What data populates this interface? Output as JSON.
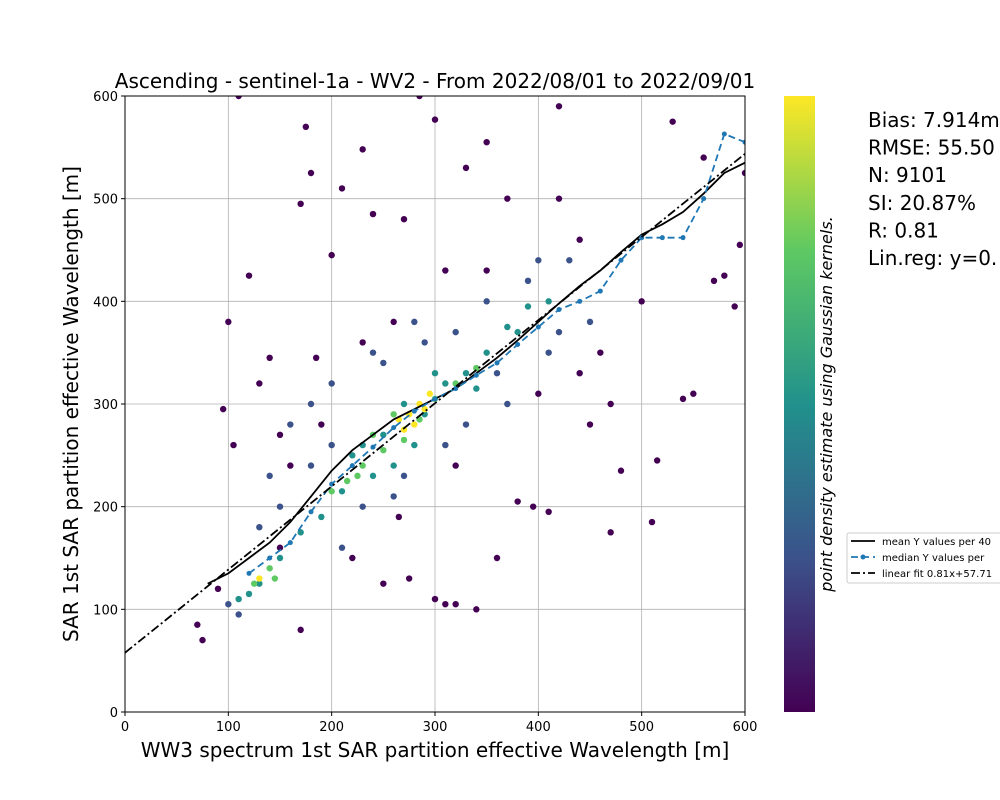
{
  "chart_data": {
    "type": "scatter",
    "title": "Ascending - sentinel-1a - WV2 - From 2022/08/01 to 2022/09/01",
    "x_label": "WW3 spectrum 1st SAR partition effective Wavelength [m]",
    "y_label": "SAR 1st SAR partition effective Wavelength [m]",
    "xlim": [
      0,
      600
    ],
    "ylim": [
      0,
      600
    ],
    "xticks": [
      0,
      100,
      200,
      300,
      400,
      500,
      600
    ],
    "yticks": [
      0,
      100,
      200,
      300,
      400,
      500,
      600
    ],
    "grid": true,
    "colorbar_label": "point density estimate using Gaussian kernels.",
    "colorbar_colors": [
      "#440154",
      "#3b528b",
      "#21918c",
      "#5ec962",
      "#fde725"
    ],
    "stats": [
      "Bias: 7.914m",
      "RMSE: 55.50",
      "N: 9101",
      "SI: 20.87%",
      "R: 0.81",
      "Lin.reg: y=0."
    ],
    "legend_loc": "right",
    "point_groups": [
      {
        "color": "#440154",
        "x": [
          70,
          75,
          90,
          95,
          100,
          105,
          110,
          120,
          130,
          140,
          150,
          160,
          170,
          170,
          175,
          180,
          185,
          200,
          210,
          220,
          230,
          240,
          250,
          260,
          270,
          275,
          285,
          300,
          300,
          310,
          320,
          320,
          330,
          340,
          350,
          360,
          370,
          380,
          395,
          400,
          410,
          420,
          440,
          450,
          460,
          470,
          480,
          500,
          510,
          515,
          530,
          540,
          550,
          560,
          570,
          580,
          590,
          595,
          600,
          230,
          265,
          150,
          440,
          470,
          190,
          350,
          310,
          420
        ],
        "y": [
          85,
          70,
          120,
          295,
          380,
          260,
          600,
          425,
          320,
          345,
          270,
          240,
          495,
          80,
          570,
          525,
          345,
          445,
          510,
          150,
          548,
          485,
          125,
          380,
          480,
          130,
          600,
          110,
          577,
          105,
          105,
          240,
          530,
          100,
          555,
          150,
          500,
          205,
          200,
          310,
          195,
          590,
          460,
          280,
          350,
          175,
          235,
          400,
          185,
          245,
          575,
          305,
          310,
          540,
          420,
          425,
          395,
          455,
          525,
          360,
          190,
          160,
          330,
          300,
          280,
          430,
          430,
          500
        ]
      },
      {
        "color": "#3b528b",
        "x": [
          100,
          110,
          130,
          150,
          160,
          180,
          200,
          210,
          230,
          250,
          270,
          290,
          310,
          330,
          350,
          370,
          390,
          410,
          430,
          450,
          200,
          240,
          280,
          320,
          360,
          400,
          420,
          140,
          180,
          260
        ],
        "y": [
          105,
          95,
          180,
          200,
          280,
          300,
          320,
          160,
          200,
          340,
          230,
          360,
          260,
          280,
          400,
          300,
          420,
          350,
          440,
          380,
          260,
          350,
          380,
          370,
          330,
          440,
          370,
          230,
          240,
          210
        ]
      },
      {
        "color": "#21918c",
        "x": [
          110,
          130,
          150,
          170,
          190,
          210,
          230,
          250,
          270,
          290,
          310,
          330,
          350,
          370,
          390,
          220,
          260,
          300,
          340,
          380,
          120,
          410,
          280,
          240
        ],
        "y": [
          110,
          125,
          150,
          175,
          190,
          215,
          260,
          270,
          300,
          290,
          320,
          330,
          350,
          375,
          395,
          250,
          240,
          330,
          315,
          370,
          115,
          400,
          260,
          230
        ]
      },
      {
        "color": "#5ec962",
        "x": [
          125,
          140,
          145,
          200,
          215,
          230,
          250,
          240,
          260,
          285,
          300,
          320,
          270,
          225,
          340
        ],
        "y": [
          125,
          140,
          130,
          215,
          225,
          240,
          255,
          270,
          290,
          285,
          305,
          320,
          265,
          230,
          335
        ]
      },
      {
        "color": "#fde725",
        "x": [
          265,
          275,
          285,
          290,
          280,
          270,
          130,
          295
        ],
        "y": [
          285,
          290,
          300,
          295,
          280,
          275,
          130,
          310
        ]
      }
    ],
    "series": [
      {
        "name": "mean Y values per 40",
        "color": "#000000",
        "style": "solid",
        "marker": false,
        "x": [
          80,
          100,
          120,
          140,
          160,
          180,
          200,
          220,
          240,
          260,
          280,
          300,
          320,
          340,
          360,
          380,
          400,
          420,
          440,
          460,
          480,
          500,
          520,
          540,
          560,
          580,
          600
        ],
        "y": [
          125,
          135,
          150,
          165,
          185,
          210,
          235,
          255,
          270,
          285,
          295,
          305,
          315,
          330,
          345,
          362,
          380,
          398,
          415,
          430,
          448,
          465,
          475,
          487,
          505,
          525,
          535
        ]
      },
      {
        "name": "median Y values per",
        "color": "#1f77b4",
        "style": "dashed",
        "marker": true,
        "x": [
          120,
          140,
          160,
          180,
          200,
          220,
          240,
          260,
          280,
          300,
          320,
          340,
          360,
          380,
          400,
          420,
          440,
          460,
          480,
          500,
          520,
          540,
          560,
          580,
          600
        ],
        "y": [
          135,
          150,
          165,
          195,
          222,
          240,
          258,
          277,
          293,
          305,
          315,
          328,
          340,
          358,
          375,
          392,
          400,
          410,
          440,
          462,
          462,
          462,
          500,
          563,
          555
        ]
      },
      {
        "name": "linear fit 0.81x+57.71",
        "color": "#000000",
        "style": "dashdot",
        "marker": false,
        "x": [
          0,
          600
        ],
        "y": [
          57.71,
          543.71
        ]
      }
    ]
  }
}
